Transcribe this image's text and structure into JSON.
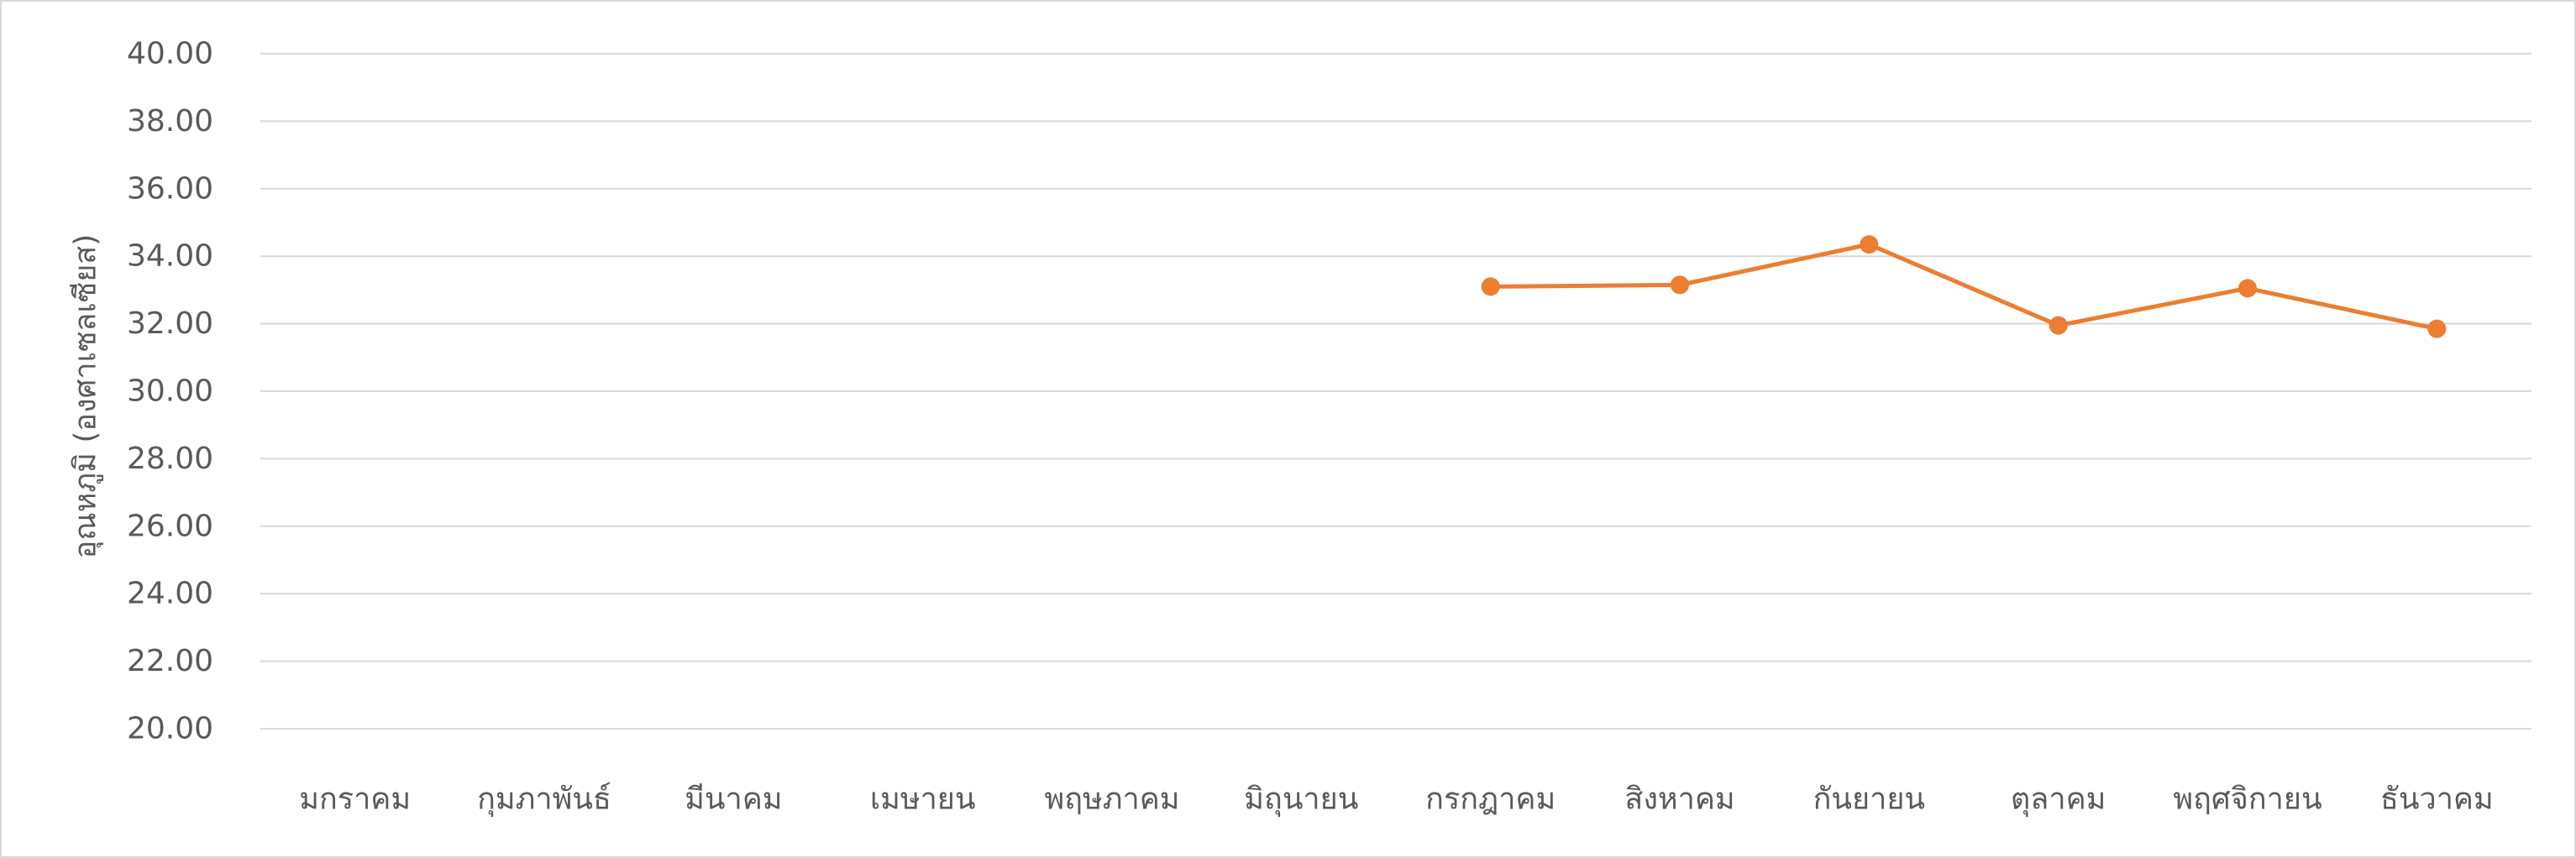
{
  "chart_data": {
    "type": "line",
    "title": "",
    "xlabel": "",
    "ylabel": "อุณหภูมิ (องศาเซลเซียส)",
    "categories": [
      "มกราคม",
      "กุมภาพันธ์",
      "มีนาคม",
      "เมษายน",
      "พฤษภาคม",
      "มิถุนายน",
      "กรกฎาคม",
      "สิงหาคม",
      "กันยายน",
      "ตุลาคม",
      "พฤศจิกายน",
      "ธันวาคม"
    ],
    "y_ticks": [
      "20.00",
      "22.00",
      "24.00",
      "26.00",
      "28.00",
      "30.00",
      "32.00",
      "34.00",
      "36.00",
      "38.00",
      "40.00"
    ],
    "ylim": [
      20,
      40
    ],
    "grid": true,
    "legend": "none",
    "series": [
      {
        "color": "#ed7d31",
        "values": [
          null,
          null,
          null,
          null,
          null,
          null,
          33.1,
          33.15,
          34.35,
          31.95,
          33.05,
          31.85
        ]
      }
    ],
    "colors": {
      "grid": "#d9d9d9",
      "text": "#595959",
      "border": "#d9d9d9"
    }
  }
}
